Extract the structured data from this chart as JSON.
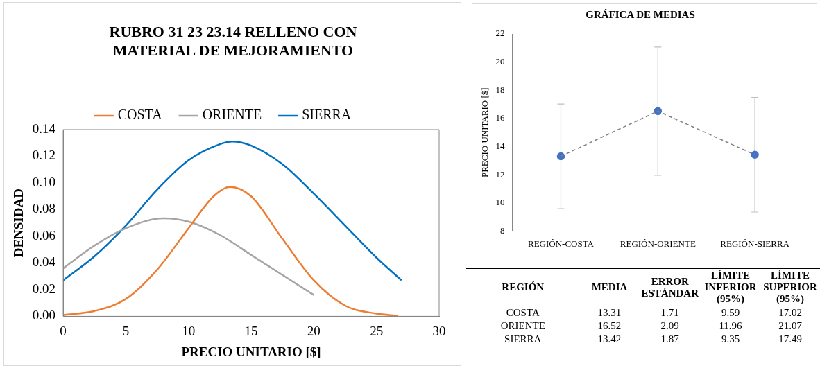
{
  "chart_data": [
    {
      "type": "line",
      "title": "RUBRO 31 23 23.14 RELLENO CON MATERIAL DE MEJORAMIENTO",
      "xlabel": "PRECIO UNITARIO [$]",
      "ylabel": "DENSIDAD",
      "legend": "top",
      "marker": "none",
      "xlim": [
        0,
        30
      ],
      "xticks": [
        0,
        5,
        10,
        15,
        20,
        25,
        30
      ],
      "ylim": [
        0,
        0.14
      ],
      "yticks": [
        {
          "value": 0,
          "label": "0.00"
        },
        {
          "value": 0.02,
          "label": "0.02"
        },
        {
          "value": 0.04,
          "label": "0.04"
        },
        {
          "value": 0.06,
          "label": "0.06"
        },
        {
          "value": 0.08,
          "label": "0.08"
        },
        {
          "value": 0.1,
          "label": "0.10"
        },
        {
          "value": 0.12,
          "label": "0.12"
        },
        {
          "value": 0.14,
          "label": "0.14"
        }
      ],
      "series": [
        {
          "name": "COSTA",
          "color": "#ed7d31",
          "x": [
            0,
            2.5,
            5,
            7.5,
            10,
            12,
            13.3,
            15,
            17.5,
            20,
            22.5,
            25,
            26.7
          ],
          "values": [
            0.001,
            0.004,
            0.013,
            0.035,
            0.066,
            0.09,
            0.097,
            0.09,
            0.058,
            0.027,
            0.008,
            0.002,
            0.0005
          ]
        },
        {
          "name": "ORIENTE",
          "color": "#a5a5a5",
          "x": [
            0,
            2.5,
            5,
            8,
            10,
            12.5,
            15,
            17.5,
            20
          ],
          "values": [
            0.036,
            0.053,
            0.066,
            0.0735,
            0.071,
            0.061,
            0.046,
            0.031,
            0.016
          ]
        },
        {
          "name": "SIERRA",
          "color": "#0070c0",
          "x": [
            0,
            2.5,
            5,
            7.5,
            10,
            12.5,
            13.5,
            15,
            17.5,
            20,
            22.5,
            25,
            27
          ],
          "values": [
            0.027,
            0.045,
            0.068,
            0.095,
            0.117,
            0.129,
            0.131,
            0.128,
            0.114,
            0.092,
            0.068,
            0.044,
            0.027
          ]
        }
      ]
    },
    {
      "type": "line",
      "title": "GRÁFICA DE MEDIAS",
      "ylabel": "PRECIO UNITARIO [$]",
      "categories": [
        "REGIÓN-COSTA",
        "REGIÓN-ORIENTE",
        "REGIÓN-SIERRA"
      ],
      "ylim": [
        8,
        22
      ],
      "yticks": [
        8,
        10,
        12,
        14,
        16,
        18,
        20,
        22
      ],
      "series": [
        {
          "type": "line",
          "color": "#7f7f7f",
          "line_style": "dashed",
          "marker": "none",
          "values": [
            13.31,
            16.52,
            13.42
          ]
        },
        {
          "type": "scatter",
          "color": "#4472c4",
          "marker": "circle",
          "values": [
            13.31,
            16.52,
            13.42
          ],
          "errors": [
            [
              9.59,
              17.02
            ],
            [
              11.96,
              21.07
            ],
            [
              9.35,
              17.49
            ]
          ]
        }
      ]
    },
    {
      "type": "other",
      "xlabel": "REGIÓN",
      "categories": [
        "COSTA",
        "ORIENTE",
        "SIERRA"
      ],
      "series": [
        {
          "name": "MEDIA",
          "values": [
            13.31,
            16.52,
            13.42
          ],
          "value_labels": [
            "13.31",
            "16.52",
            "13.42"
          ]
        },
        {
          "name": "ERROR ESTÁNDAR",
          "values": [
            1.71,
            2.09,
            1.87
          ],
          "value_labels": [
            "1.71",
            "2.09",
            "1.87"
          ]
        },
        {
          "name": "LÍMITE INFERIOR (95%)",
          "values": [
            9.59,
            11.96,
            9.35
          ],
          "value_labels": [
            "9.59",
            "11.96",
            "9.35"
          ]
        },
        {
          "name": "LÍMITE SUPERIOR (95%)",
          "values": [
            17.02,
            21.07,
            17.49
          ],
          "value_labels": [
            "17.02",
            "21.07",
            "17.49"
          ]
        }
      ]
    }
  ]
}
